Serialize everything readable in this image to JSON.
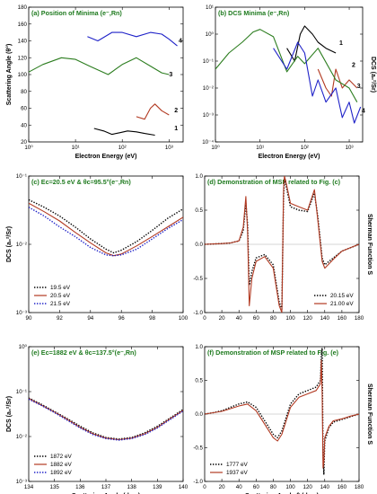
{
  "colors": {
    "black": "#000000",
    "red": "#b23a22",
    "blue": "#1f22c8",
    "green": "#2c7d1f",
    "title": "#1e7a1e"
  },
  "chart_data": [
    {
      "id": "a",
      "type": "line",
      "title": "(a) Position of Minima (e⁻,Rn)",
      "xlabel": "Electron Energy (eV)",
      "ylabel": "Scattering Angle (θ°)",
      "xscale": "log",
      "xlim": [
        1,
        2000
      ],
      "ylim": [
        20,
        180
      ],
      "xticks": [
        1,
        10,
        100,
        1000
      ],
      "xticklabels": [
        "10⁰",
        "10¹",
        "10²",
        "10³"
      ],
      "yticks": [
        20,
        40,
        60,
        80,
        100,
        120,
        140,
        160,
        180
      ],
      "yticklabels": [
        "20",
        "40",
        "60",
        "80",
        "100",
        "120",
        "140",
        "160",
        "180"
      ],
      "series": [
        {
          "name": "1",
          "color": "black",
          "x": [
            25,
            40,
            60,
            90,
            130,
            200,
            300,
            500
          ],
          "y": [
            36,
            33,
            29,
            31,
            33,
            32,
            30,
            28
          ]
        },
        {
          "name": "2",
          "color": "red",
          "x": [
            200,
            300,
            400,
            500,
            700,
            1000
          ],
          "y": [
            50,
            47,
            60,
            65,
            57,
            52
          ]
        },
        {
          "name": "3",
          "color": "green",
          "x": [
            1,
            2,
            5,
            10,
            20,
            50,
            100,
            200,
            400,
            700,
            1000
          ],
          "y": [
            103,
            112,
            120,
            118,
            110,
            100,
            112,
            120,
            110,
            102,
            100
          ]
        },
        {
          "name": "4",
          "color": "blue",
          "x": [
            18,
            30,
            60,
            100,
            200,
            400,
            700,
            1000,
            1500
          ],
          "y": [
            145,
            140,
            150,
            150,
            145,
            150,
            148,
            142,
            134
          ]
        }
      ],
      "curve_labels": [
        {
          "text": "1",
          "x": 1300,
          "y": 34
        },
        {
          "text": "2",
          "x": 1300,
          "y": 55
        },
        {
          "text": "3",
          "x": 1000,
          "y": 98
        },
        {
          "text": "4",
          "x": 1600,
          "y": 138
        }
      ]
    },
    {
      "id": "b",
      "type": "line",
      "title": "(b) DCS  Minima (e⁻,Rn)",
      "xlabel": "Electron Energy (eV)",
      "ylabel": "DCS (a₀²/Sr)",
      "xscale": "log",
      "yscale": "log",
      "xlim": [
        1,
        2000
      ],
      "ylim": [
        0.0001,
        10
      ],
      "xticks": [
        1,
        10,
        100,
        1000
      ],
      "xticklabels": [
        "10⁰",
        "10¹",
        "10²",
        "10³"
      ],
      "yticks": [
        0.0001,
        0.001,
        0.01,
        0.1,
        1,
        10
      ],
      "yticklabels": [
        "10⁻⁴",
        "10⁻³",
        "10⁻²",
        "10⁻¹",
        "10⁰",
        "10¹"
      ],
      "series": [
        {
          "name": "1",
          "color": "black",
          "x": [
            40,
            60,
            80,
            100,
            150,
            200,
            300,
            500
          ],
          "y": [
            0.3,
            0.1,
            1,
            2,
            1,
            0.5,
            0.3,
            0.2
          ]
        },
        {
          "name": "2",
          "color": "red",
          "x": [
            200,
            300,
            400,
            500,
            700,
            1000,
            1500
          ],
          "y": [
            0.05,
            0.01,
            0.005,
            0.05,
            0.01,
            0.02,
            0.01
          ]
        },
        {
          "name": "3",
          "color": "green",
          "x": [
            1,
            2,
            4,
            7,
            10,
            20,
            40,
            70,
            100,
            200,
            500,
            1000,
            1500
          ],
          "y": [
            0.05,
            0.2,
            0.5,
            1.2,
            1.5,
            0.8,
            0.04,
            0.15,
            0.08,
            0.3,
            0.02,
            0.01,
            0.003
          ]
        },
        {
          "name": "4",
          "color": "blue",
          "x": [
            20,
            40,
            70,
            100,
            150,
            200,
            300,
            500,
            700,
            1000,
            1300,
            1800
          ],
          "y": [
            0.3,
            0.05,
            0.5,
            0.2,
            0.005,
            0.02,
            0.003,
            0.01,
            0.0008,
            0.003,
            0.0005,
            0.002
          ]
        }
      ],
      "curve_labels": [
        {
          "text": "1",
          "x": 600,
          "y": 0.4
        },
        {
          "text": "2",
          "x": 1150,
          "y": 0.06
        },
        {
          "text": "3",
          "x": 1500,
          "y": 0.01
        },
        {
          "text": "4",
          "x": 1900,
          "y": 0.0012
        }
      ]
    },
    {
      "id": "c",
      "type": "line",
      "title": "(c) Eᴄ=20.5 eV & θᴄ=95.5°(e⁻,Rn)",
      "xlabel": "",
      "ylabel": "DCS (a₀²/Sr)",
      "yscale": "log",
      "xlim": [
        90,
        100
      ],
      "ylim": [
        0.001,
        0.1
      ],
      "xticks": [
        90,
        92,
        94,
        96,
        98,
        100
      ],
      "xticklabels": [
        "90",
        "92",
        "94",
        "96",
        "98",
        "100"
      ],
      "yticks": [
        0.001,
        0.01,
        0.1
      ],
      "yticklabels": [
        "10⁻³",
        "10⁻²",
        "10⁻¹"
      ],
      "series": [
        {
          "name": "19.5 eV",
          "color": "black",
          "dash": "dot",
          "x": [
            90,
            91,
            92,
            93,
            94,
            95,
            95.5,
            96,
            97,
            98,
            99,
            100
          ],
          "y": [
            0.045,
            0.035,
            0.026,
            0.018,
            0.012,
            0.0085,
            0.0075,
            0.0082,
            0.011,
            0.016,
            0.024,
            0.033
          ]
        },
        {
          "name": "20.5 eV",
          "color": "red",
          "dash": "solid",
          "x": [
            90,
            91,
            92,
            93,
            94,
            95,
            95.5,
            96,
            97,
            98,
            99,
            100
          ],
          "y": [
            0.04,
            0.03,
            0.022,
            0.015,
            0.0105,
            0.0075,
            0.0068,
            0.0072,
            0.0095,
            0.013,
            0.018,
            0.025
          ]
        },
        {
          "name": "21.5 eV",
          "color": "blue",
          "dash": "dot",
          "x": [
            90,
            91,
            92,
            93,
            94,
            95,
            95.5,
            96,
            97,
            98,
            99,
            100
          ],
          "y": [
            0.035,
            0.026,
            0.018,
            0.013,
            0.009,
            0.007,
            0.0068,
            0.007,
            0.0085,
            0.012,
            0.017,
            0.023
          ]
        }
      ]
    },
    {
      "id": "d",
      "type": "line",
      "title": "(d) Demonstration of MSP related to Fig. (c)",
      "xlabel": "",
      "ylabel": "Sherman Function S",
      "xlim": [
        0,
        180
      ],
      "ylim": [
        -1.0,
        1.0
      ],
      "xticks": [
        0,
        20,
        40,
        60,
        80,
        100,
        120,
        140,
        160,
        180
      ],
      "xticklabels": [
        "0",
        "20",
        "40",
        "60",
        "80",
        "100",
        "120",
        "140",
        "160",
        "180"
      ],
      "yticks": [
        -1.0,
        -0.5,
        0.0,
        0.5,
        1.0
      ],
      "yticklabels": [
        "-1.0",
        "-0.5",
        "0.0",
        "0.5",
        "1.0"
      ],
      "series": [
        {
          "name": "20.15 eV",
          "color": "black",
          "dash": "dot",
          "x": [
            0,
            20,
            30,
            40,
            45,
            48,
            50,
            52,
            55,
            60,
            70,
            80,
            87,
            90,
            92,
            93,
            95,
            100,
            110,
            120,
            128,
            132,
            137,
            140,
            150,
            160,
            170,
            180
          ],
          "y": [
            0,
            0.01,
            0.02,
            0.05,
            0.2,
            0.6,
            0.3,
            -0.6,
            -0.4,
            -0.2,
            -0.15,
            -0.3,
            -0.85,
            -0.95,
            0.7,
            0.95,
            0.85,
            0.55,
            0.5,
            0.48,
            0.75,
            0.4,
            -0.2,
            -0.3,
            -0.2,
            -0.1,
            -0.05,
            0
          ]
        },
        {
          "name": "21.00 eV",
          "color": "red",
          "dash": "solid",
          "x": [
            0,
            20,
            30,
            40,
            45,
            48,
            50,
            52,
            55,
            60,
            70,
            80,
            87,
            90,
            92,
            93,
            95,
            100,
            110,
            120,
            128,
            132,
            137,
            140,
            150,
            160,
            170,
            180
          ],
          "y": [
            0,
            0.01,
            0.02,
            0.05,
            0.25,
            0.7,
            0.2,
            -0.9,
            -0.5,
            -0.25,
            -0.18,
            -0.35,
            -0.9,
            -1.0,
            0.8,
            1.0,
            0.9,
            0.6,
            0.55,
            0.5,
            0.8,
            0.35,
            -0.25,
            -0.35,
            -0.22,
            -0.1,
            -0.05,
            0
          ]
        }
      ]
    },
    {
      "id": "e",
      "type": "line",
      "title": "(e) Eᴄ=1882 eV & θᴄ=137.5°(e⁻,Rn)",
      "xlabel": "Scattering Angle (deg.)",
      "ylabel": "DCS (a₀²/Sr)",
      "yscale": "log",
      "xlim": [
        134,
        140
      ],
      "ylim": [
        0.001,
        1
      ],
      "xticks": [
        134,
        135,
        136,
        137,
        138,
        139,
        140
      ],
      "xticklabels": [
        "134",
        "135",
        "136",
        "137",
        "138",
        "139",
        "140"
      ],
      "yticks": [
        0.001,
        0.01,
        0.1,
        1
      ],
      "yticklabels": [
        "10⁻³",
        "10⁻²",
        "10⁻¹",
        "10⁰"
      ],
      "series": [
        {
          "name": "1872 eV",
          "color": "black",
          "dash": "dot",
          "x": [
            134,
            134.5,
            135,
            135.5,
            136,
            136.5,
            137,
            137.5,
            138,
            138.5,
            139,
            139.5,
            140
          ],
          "y": [
            0.072,
            0.052,
            0.036,
            0.025,
            0.017,
            0.012,
            0.0095,
            0.0088,
            0.0095,
            0.012,
            0.017,
            0.026,
            0.04
          ]
        },
        {
          "name": "1882 eV",
          "color": "red",
          "dash": "solid",
          "x": [
            134,
            134.5,
            135,
            135.5,
            136,
            136.5,
            137,
            137.5,
            138,
            138.5,
            139,
            139.5,
            140
          ],
          "y": [
            0.07,
            0.05,
            0.035,
            0.024,
            0.016,
            0.0115,
            0.0092,
            0.0085,
            0.0092,
            0.0115,
            0.016,
            0.025,
            0.038
          ]
        },
        {
          "name": "1892 eV",
          "color": "blue",
          "dash": "dot",
          "x": [
            134,
            134.5,
            135,
            135.5,
            136,
            136.5,
            137,
            137.5,
            138,
            138.5,
            139,
            139.5,
            140
          ],
          "y": [
            0.068,
            0.049,
            0.034,
            0.023,
            0.0155,
            0.011,
            0.009,
            0.0083,
            0.009,
            0.011,
            0.0155,
            0.024,
            0.037
          ]
        }
      ]
    },
    {
      "id": "f",
      "type": "line",
      "title": "(f) Demonstration of MSP related to Fig. (e)",
      "xlabel": "Scattering Angle θ (deg.)",
      "ylabel": "Sherman Function S",
      "xlim": [
        0,
        180
      ],
      "ylim": [
        -1.0,
        1.0
      ],
      "xticks": [
        0,
        20,
        40,
        60,
        80,
        100,
        120,
        140,
        160,
        180
      ],
      "xticklabels": [
        "0",
        "20",
        "40",
        "60",
        "80",
        "100",
        "120",
        "140",
        "160",
        "180"
      ],
      "yticks": [
        -1.0,
        -0.5,
        0.0,
        0.5,
        1.0
      ],
      "yticklabels": [
        "-1.0",
        "-0.5",
        "0.0",
        "0.5",
        "1.0"
      ],
      "series": [
        {
          "name": "1777 eV",
          "color": "black",
          "dash": "dot",
          "x": [
            0,
            10,
            20,
            30,
            40,
            50,
            60,
            70,
            80,
            85,
            90,
            95,
            100,
            110,
            120,
            130,
            135,
            136,
            137,
            138,
            139,
            140,
            145,
            150,
            160,
            170,
            180
          ],
          "y": [
            0,
            0.02,
            0.05,
            0.1,
            0.15,
            0.18,
            0.1,
            -0.1,
            -0.3,
            -0.35,
            -0.25,
            -0.05,
            0.15,
            0.3,
            0.35,
            0.4,
            0.5,
            0.9,
            0.98,
            -0.6,
            -0.9,
            -0.4,
            -0.2,
            -0.12,
            -0.08,
            -0.04,
            0
          ]
        },
        {
          "name": "1937 eV",
          "color": "red",
          "dash": "solid",
          "x": [
            0,
            10,
            20,
            30,
            40,
            50,
            60,
            70,
            80,
            85,
            90,
            95,
            100,
            110,
            120,
            130,
            135,
            136,
            137,
            138,
            139,
            140,
            145,
            150,
            160,
            170,
            180
          ],
          "y": [
            0,
            0.02,
            0.04,
            0.08,
            0.12,
            0.15,
            0.05,
            -0.15,
            -0.35,
            -0.4,
            -0.3,
            -0.1,
            0.1,
            0.25,
            0.3,
            0.35,
            0.45,
            0.8,
            0.3,
            -0.8,
            -0.7,
            -0.35,
            -0.18,
            -0.1,
            -0.07,
            -0.03,
            0
          ]
        }
      ]
    }
  ]
}
